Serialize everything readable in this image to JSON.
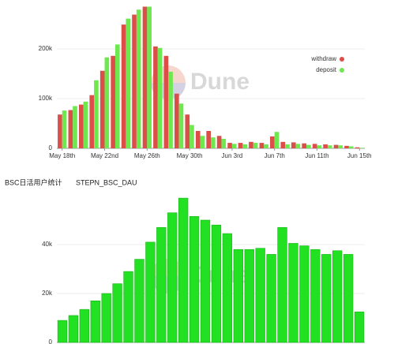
{
  "chart_data": [
    {
      "type": "grouped_bar",
      "categories": [
        "May 18th",
        null,
        null,
        null,
        "May 22nd",
        null,
        null,
        null,
        "May 26th",
        null,
        null,
        null,
        "May 30th",
        null,
        null,
        null,
        "Jun 3rd",
        null,
        null,
        null,
        "Jun 7th",
        null,
        null,
        null,
        "Jun 11th",
        null,
        null,
        null,
        "Jun 15th"
      ],
      "series": [
        {
          "name": "withdraw",
          "color": "#dc4e48",
          "values": [
            68000,
            77000,
            88000,
            107000,
            156000,
            186000,
            249000,
            269000,
            285000,
            205000,
            186000,
            110000,
            68000,
            35000,
            35000,
            25000,
            11000,
            11000,
            13000,
            11000,
            24000,
            13000,
            12000,
            10000,
            9000,
            8000,
            7000,
            5000,
            2000
          ]
        },
        {
          "name": "deposit",
          "color": "#6ee84e",
          "values": [
            76000,
            85000,
            94000,
            137000,
            183000,
            209000,
            261000,
            279000,
            285000,
            202000,
            154000,
            90000,
            47000,
            25000,
            22000,
            19000,
            9000,
            8000,
            11000,
            8000,
            33000,
            8000,
            9000,
            7000,
            6000,
            6000,
            6000,
            4000,
            1000
          ]
        }
      ],
      "ylim": [
        0,
        290000
      ],
      "yticks": [
        0,
        {
          "value": 100000,
          "label": "100k"
        },
        {
          "value": 200000,
          "label": "200k"
        }
      ],
      "legend": "top-right",
      "watermark": "Dune"
    },
    {
      "type": "bar",
      "title": "BSC日活用户统计",
      "subtitle": "STEPN_BSC_DAU",
      "categories": [
        null,
        null,
        null,
        null,
        null,
        null,
        null,
        null,
        null,
        null,
        null,
        null,
        null,
        null,
        null,
        null,
        null,
        null,
        null,
        null,
        null,
        null,
        null,
        null,
        null,
        null,
        null,
        null
      ],
      "values": [
        9000,
        11000,
        13500,
        17000,
        20000,
        24000,
        29000,
        34000,
        41000,
        47000,
        53000,
        59000,
        51500,
        50000,
        48000,
        44500,
        38000,
        38000,
        38500,
        36000,
        47000,
        40500,
        39500,
        38000,
        36000,
        37500,
        36000,
        12500
      ],
      "color": "#22e022",
      "ylim": [
        0,
        60000
      ],
      "yticks": [
        0,
        {
          "value": 20000,
          "label": "20k"
        },
        {
          "value": 40000,
          "label": "40k"
        }
      ],
      "watermark": "Dune"
    }
  ]
}
